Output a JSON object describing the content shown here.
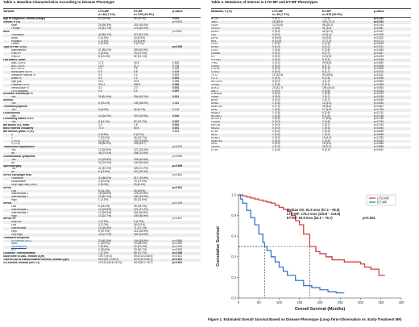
{
  "table1": {
    "title": "Table 1. Baseline Characteristics According to Disease Phenotype",
    "headers": [
      "Variable",
      "LTO-MF\nn= 48 (7.1%)",
      "ET-MF\nn= 578 (92.9%)",
      "p-value"
    ],
    "rows": [
      {
        "label": "Age at Diagnosis, median (range)",
        "ind": 0,
        "sec": true,
        "a": "63 (35-86)",
        "b": "66 (19-90)",
        "p": "0.001"
      },
      {
        "label": "Gender, n (%)",
        "ind": 0,
        "sec": true,
        "a": "",
        "b": "",
        "p": "p=0.623"
      },
      {
        "label": "Male",
        "ind": 1,
        "a": "28 (58.3%)",
        "b": "261 (60.0%)",
        "p": ""
      },
      {
        "label": "Female",
        "ind": 1,
        "a": "20 (41.7%)",
        "b": "174 (40.0%)",
        "p": ""
      },
      {
        "label": "Race",
        "ind": 0,
        "sec": true,
        "a": "",
        "b": "",
        "p": "p=0.621"
      },
      {
        "label": "Caucasian",
        "ind": 1,
        "a": "40 (83.1%)",
        "b": "371 (87.1%)",
        "p": ""
      },
      {
        "label": "Black",
        "ind": 1,
        "a": "2 (4.3%)",
        "b": "23 (5.4%)",
        "p": ""
      },
      {
        "label": "Hispanic",
        "ind": 1,
        "a": "1 (2.1%)",
        "b": "23 (5.4%)",
        "p": ""
      },
      {
        "label": "Others",
        "ind": 1,
        "a": "2 (4.3%)",
        "b": "9 (2.1%)",
        "p": ""
      },
      {
        "label": "Type of PMF, n (%)",
        "ind": 0,
        "sec": true,
        "a": "",
        "b": "",
        "p": "p=0.003"
      },
      {
        "label": "Myelofibrotic",
        "ind": 1,
        "a": "41 (85.4%)",
        "b": "265 (60.9%)",
        "p": ""
      },
      {
        "label": "Post-PV",
        "ind": 1,
        "a": "2 (4.2%)",
        "b": "78 (17.9%)",
        "p": ""
      },
      {
        "label": "Post-ET",
        "ind": 1,
        "a": "5 (10.4%)",
        "b": "92 (21.1%)",
        "p": ""
      },
      {
        "label": "Lab values, mean",
        "ind": 0,
        "sec": true,
        "a": "",
        "b": "",
        "p": ""
      },
      {
        "label": "WBC x10⁹/L",
        "ind": 1,
        "a": "17.2",
        "b": "16.5",
        "p": "0.815"
      },
      {
        "label": "ANC x10⁹/L",
        "ind": 1,
        "a": "12.0",
        "b": "11.1",
        "p": "0.734"
      },
      {
        "label": "ALC x10⁹/L",
        "ind": 1,
        "a": "1.6",
        "b": "2.6",
        "p": "0.169"
      },
      {
        "label": "Monocytes x10⁹/L",
        "ind": 1,
        "a": "0.9",
        "b": "0.8",
        "p": "0.605"
      },
      {
        "label": "Immature myeloid %",
        "ind": 1,
        "a": "3.3",
        "b": "3.1",
        "p": "0.822"
      },
      {
        "label": "Blasts %",
        "ind": 1,
        "a": "0.4",
        "b": "1.2",
        "p": "0.001"
      },
      {
        "label": "Hgb g/dL",
        "ind": 1,
        "a": "11.0",
        "b": "10.5",
        "p": "0.096"
      },
      {
        "label": "Platelets x10⁹/L",
        "ind": 1,
        "a": "374.4",
        "b": "306.3",
        "p": "0.006"
      },
      {
        "label": "Reticulocyte %",
        "ind": 1,
        "a": "3.2",
        "b": "2.0",
        "p": "0.001"
      },
      {
        "label": "LDH, adjusted",
        "ind": 1,
        "a": "2.4",
        "b": "3.4",
        "p": "0.007"
      },
      {
        "label": "Elevated reticulocyte %",
        "ind": 0,
        "sec": true,
        "a": "",
        "b": "",
        "p": ""
      },
      {
        "label": "Yes",
        "ind": 1,
        "a": "35 (81.4%)",
        "b": "254 (64.1%)",
        "p": "0.021"
      },
      {
        "label": "Anemia",
        "ind": 0,
        "sec": true,
        "a": "",
        "b": "",
        "p": ""
      },
      {
        "label": "Yes",
        "ind": 1,
        "a": "9 (23.1%)",
        "b": "139 (38.0%)",
        "p": "0.084"
      },
      {
        "label": "Thrombocytopenia",
        "ind": 0,
        "sec": true,
        "a": "",
        "b": "",
        "p": ""
      },
      {
        "label": "Yes",
        "ind": 1,
        "a": "0 (0.0%)",
        "b": "26 (6.7%)",
        "p": "0.143"
      },
      {
        "label": "Leukocytosis",
        "ind": 0,
        "sec": true,
        "a": "",
        "b": "",
        "p": ""
      },
      {
        "label": "Yes",
        "ind": 1,
        "a": "11 (26.2%)",
        "b": "207 (49.9%)",
        "p": "0.010"
      },
      {
        "label": "Circulating Blasts >=2%",
        "ind": 0,
        "sec": true,
        "a": "",
        "b": "",
        "p": ""
      },
      {
        "label": "Yes",
        "ind": 1,
        "a": "3 (11.1%)",
        "b": "82 (27.7%)",
        "p": "0.037"
      },
      {
        "label": "BM Blasts (%), mean",
        "ind": 0,
        "sec": true,
        "a": "1.3",
        "b": "1.8",
        "p": "0.001"
      },
      {
        "label": "Bone marrow cellularity",
        "ind": 0,
        "sec": true,
        "a": "71.0",
        "b": "60.8",
        "p": "0.001"
      },
      {
        "label": "BM fibrosis grade, n (%)",
        "ind": 0,
        "sec": true,
        "a": "",
        "b": "",
        "p": "0.625"
      },
      {
        "label": "0",
        "ind": 1,
        "a": "2 (5.6%)",
        "b": "9 (2.1%)",
        "p": ""
      },
      {
        "label": "1",
        "ind": 1,
        "a": "7 (19.4%)",
        "b": "46 (10.7%)",
        "p": ""
      },
      {
        "label": "2 (>=2)",
        "ind": 1,
        "a": "11 (23.0)",
        "b": "101 (23.6%)",
        "p": ""
      },
      {
        "label": "3 (>=3)",
        "ind": 1,
        "a": "28 (80.0%)",
        "b": "228 (53.7)",
        "p": ""
      },
      {
        "label": "Transfusion dependence",
        "ind": 0,
        "sec": true,
        "a": "",
        "b": "",
        "p": "p=0.223"
      },
      {
        "label": "Yes",
        "ind": 1,
        "a": "10 (20.8%)",
        "b": "127 (29.2%)",
        "p": ""
      },
      {
        "label": "No",
        "ind": 1,
        "a": "38 (79.2%)",
        "b": "308 (70.8%)",
        "p": ""
      },
      {
        "label": "Constitutional symptoms",
        "ind": 0,
        "sec": true,
        "a": "",
        "b": "",
        "p": "p=0.052"
      },
      {
        "label": "Yes",
        "ind": 1,
        "a": "14 (29.8%)",
        "b": "193 (44.9%)",
        "p": ""
      },
      {
        "label": "No",
        "ind": 1,
        "a": "33 (70.2%)",
        "b": "240 (55.6%)",
        "p": ""
      },
      {
        "label": "Splenomegaly",
        "ind": 0,
        "sec": true,
        "a": "",
        "b": "",
        "p": "p=0.005"
      },
      {
        "label": "Yes",
        "ind": 1,
        "a": "41 (87.2%)",
        "b": "325 (74.7%)",
        "p": ""
      },
      {
        "label": "No",
        "ind": 1,
        "a": "6 (12.8%)",
        "b": "110 (25.3%)",
        "p": ""
      },
      {
        "label": "GIPSS Karyotype Risk",
        "ind": 0,
        "sec": true,
        "a": "",
        "b": "",
        "p": "p=0.481"
      },
      {
        "label": "Favorable",
        "ind": 1,
        "a": "34 (85.0%)",
        "b": "317 (76.9%)",
        "p": ""
      },
      {
        "label": "Unfavorable",
        "ind": 1,
        "a": "4 (10.0%)",
        "b": "70 (17.0%)",
        "p": ""
      },
      {
        "label": "Very High Risk (VHR)",
        "ind": 1,
        "a": "2 (5.0%)",
        "b": "25 (6.1%)",
        "p": ""
      },
      {
        "label": "GIPSS",
        "ind": 0,
        "sec": true,
        "a": "",
        "b": "",
        "p": "p=0.001"
      },
      {
        "label": "Low",
        "ind": 1,
        "a": "5 (11.1%)",
        "b": "25 (6.0%)",
        "p": ""
      },
      {
        "label": "Intermediate-1",
        "ind": 1,
        "a": "16 (35.6%)",
        "b": "124 (29.6%)",
        "p": ""
      },
      {
        "label": "Intermediate-2",
        "ind": 1,
        "a": "23 (51.1%)",
        "b": "180 (43.0%)",
        "p": ""
      },
      {
        "label": "High",
        "ind": 1,
        "a": "1 (2.2%)",
        "b": "90 (21.5%)",
        "p": ""
      },
      {
        "label": "GIPSS",
        "ind": 0,
        "sec": true,
        "a": "",
        "b": "",
        "p": "p=0.125"
      },
      {
        "label": "Low",
        "ind": 1,
        "a": "8 (18.2%)",
        "b": "35 (16.2%)",
        "p": ""
      },
      {
        "label": "Intermediate-1",
        "ind": 1,
        "a": "13 (29.5%)",
        "b": "121 (27.2%)",
        "p": ""
      },
      {
        "label": "Intermediate-2",
        "ind": 1,
        "a": "13 (29.5%)",
        "b": "116 (26.9%)",
        "p": ""
      },
      {
        "label": "High",
        "ind": 1,
        "a": "10 (22.7%)",
        "b": "159 (36.9%)",
        "p": ""
      },
      {
        "label": "MIPSS70+",
        "ind": 0,
        "sec": true,
        "a": "",
        "b": "",
        "p": "p=0.407"
      },
      {
        "label": "Very low",
        "ind": 1,
        "a": "1 (2.3%)",
        "b": "5 (1.2%)",
        "p": ""
      },
      {
        "label": "Low",
        "ind": 1,
        "a": "3 (7.0%)",
        "b": "38 (9.2%)",
        "p": ""
      },
      {
        "label": "Intermediate",
        "ind": 1,
        "a": "11 (25.6%)",
        "b": "71 (17.1%)",
        "p": ""
      },
      {
        "label": "High",
        "ind": 1,
        "a": "9 (27.9%)",
        "b": "114 (28.9%)",
        "p": ""
      },
      {
        "label": "Very high",
        "ind": 1,
        "a": "16 (37.2%)",
        "b": "181 (43.6%)",
        "p": ""
      },
      {
        "label": "Treatment Response",
        "ind": 0,
        "sec": true,
        "a": "",
        "b": "",
        "p": ""
      },
      {
        "label": "Ruxolitinib/JAK2i",
        "ind": 1,
        "lnk": true,
        "a": "20 (62.5%)",
        "b": "164 (69.5%)",
        "p": "p=0.906"
      },
      {
        "label": "HMA",
        "ind": 1,
        "a": "1 (20.0%)",
        "b": "14 (28.0%)",
        "p": "p=1.000"
      },
      {
        "label": "Hydroxyurea",
        "ind": 1,
        "lnk": true,
        "a": "1 (5.6%)",
        "b": "22 (21.4%)",
        "p": "p=0.123"
      },
      {
        "label": "SCT",
        "ind": 1,
        "a": "4 (30.8%)",
        "b": "33 (30.7%)",
        "p": "p=0.520"
      },
      {
        "label": "Leukemic Transformation",
        "ind": 0,
        "sec": true,
        "a": "1 (2.1%)",
        "b": "68 (11.7%)",
        "p": "p=0.046"
      },
      {
        "label": "Study time to AML, median (IQR)",
        "ind": 0,
        "sec": true,
        "a": "175.7 (n=1)",
        "b": "39.6 (13.2-84.0)",
        "p": "p=0.321"
      },
      {
        "label": "Time at risk to transformation months, median (IQR)",
        "ind": 0,
        "sec": true,
        "a": "95.3 (62.1-153.2)",
        "b": "40.5 (10.3-80.1)",
        "p": "p<0.001"
      },
      {
        "label": "OS months, median (95% CI)",
        "ind": 0,
        "sec": true,
        "a": "175.3 (125.8-214.9)",
        "b": "63.9 (53.1-76.7)",
        "p": "p<0.001"
      }
    ]
  },
  "table2": {
    "title": "Table 2. Mutations of Interest in LTO-MF and ET-MF Phenotypes",
    "headers": [
      "Mutation, n (%)",
      "LTO-MF\nn= 48 (7.1%)",
      "ET-MF\nn= 578 (92.9%)",
      "p-value"
    ],
    "rows": [
      {
        "label": "BCOR",
        "a": "3 (6.1)",
        "b": "7 (2.6)",
        "p": "p=0.030"
      },
      {
        "label": "JAK2",
        "a": "26 (58.3)",
        "b": "315 (72.4)",
        "p": "p=0.041"
      },
      {
        "label": "CALR",
        "a": "12 (31.6)",
        "b": "58 (20.2)",
        "p": "p=0.144"
      },
      {
        "label": "SRSF2",
        "a": "2 (5.6)",
        "b": "31 (9.2)",
        "p": "p=0.587"
      },
      {
        "label": "U2AF1",
        "a": "2 (5.3)",
        "b": "42 (12.1)",
        "p": "p=0.167"
      },
      {
        "label": "CBL",
        "a": "0 (0.0)",
        "b": "14 (4.1)",
        "p": "p=0.205"
      },
      {
        "label": "EZH2",
        "a": "6 (16.6)",
        "b": "34 (9.5)",
        "p": "p=0.202"
      },
      {
        "label": "MPL",
        "a": "5 (12.5)",
        "b": "27 (7.3)",
        "p": "p=0.271"
      },
      {
        "label": "PHF6",
        "a": "1 (2.8)",
        "b": "6 (1.8)",
        "p": "p=0.508"
      },
      {
        "label": "KRAS",
        "a": "0 (0.0)",
        "b": "6 (2.2)",
        "p": "p=0.341"
      },
      {
        "label": "CUX1",
        "a": "2 (5.6)",
        "b": "9 (2.8)",
        "p": "p=0.360"
      },
      {
        "label": "KDM6A",
        "a": "0 (0.0)",
        "b": "8 (2.7)",
        "p": "p=0.367"
      },
      {
        "label": "KIT",
        "a": "0 (0.0)",
        "b": "10 (2.9)",
        "p": "p=0.423"
      },
      {
        "label": "PTPN11",
        "a": "0 (0.0)",
        "b": "8 (2.5)",
        "p": "p=0.456"
      },
      {
        "label": "TP53",
        "a": "2 (4.2)",
        "b": "29 (6.9)",
        "p": "p=0.460"
      },
      {
        "label": "GATA2",
        "a": "0 (0.0)",
        "b": "6 (1.7)",
        "p": "p=0.505"
      },
      {
        "label": "CSF3R",
        "a": "0 (0.0)",
        "b": "5 (1.5)",
        "p": "p=0.505"
      },
      {
        "label": "STAG2",
        "a": "0 (0.0)",
        "b": "6 (1.7)",
        "p": "p=0.514"
      },
      {
        "label": "TET2",
        "a": "12 (31.6)",
        "b": "92 (26.5)",
        "p": "p=0.511"
      },
      {
        "label": "FLT3",
        "a": "0 (0.0)",
        "b": "5 (1.5)",
        "p": "p=0.559"
      },
      {
        "label": "NOTCH1",
        "a": "0 (0.0)",
        "b": "4 (1.2)",
        "p": "p=0.563"
      },
      {
        "label": "SH2B3",
        "a": "1 (2.8)",
        "b": "5 (2.1)",
        "p": "p=0.568"
      },
      {
        "label": "ASXL1",
        "a": "20 (41.7)",
        "b": "194 (44.6)",
        "p": "p=0.604"
      },
      {
        "label": "ABL1",
        "a": "0 (0.0)",
        "b": "2 (0.6)",
        "p": "p=0.633"
      },
      {
        "label": "CDKN2A",
        "a": "0 (0.0)",
        "b": "2 (0.6)",
        "p": "p=0.633"
      },
      {
        "label": "GNAS",
        "a": "0 (0.0)",
        "b": "2 (0.7)",
        "p": "p=0.638"
      },
      {
        "label": "BRAF",
        "a": "0 (0.0)",
        "b": "2 (0.7)",
        "p": "p=0.639"
      },
      {
        "label": "NRAS",
        "a": "1 (2.8)",
        "b": "13 (4.3)",
        "p": "p=0.653"
      },
      {
        "label": "DNMT3A",
        "a": "3 (7.9)",
        "b": "28 (8.3)",
        "p": "p=0.667"
      },
      {
        "label": "IDH2",
        "a": "1 (2.6)",
        "b": "17 (4.9)",
        "p": "p=0.706"
      },
      {
        "label": "NRAS2",
        "a": "1 (2.8)",
        "b": "8 (2.6)",
        "p": "p=0.742"
      },
      {
        "label": "BCORL1",
        "a": "1 (2.8)",
        "b": "6 (1.9)",
        "p": "p=0.745"
      },
      {
        "label": "SETBP1",
        "a": "2 (5.6)",
        "b": "17 (5.6)",
        "p": "p=0.765"
      },
      {
        "label": "CEBPA",
        "a": "0 (0.0)",
        "b": "2 (0.6)",
        "p": "p=0.794"
      },
      {
        "label": "KMT2A",
        "a": "0 (0.0)",
        "b": "2 (0.7)",
        "p": "p=0.794"
      },
      {
        "label": "RAD21",
        "a": "0 (0.0)",
        "b": "1 (0.3)",
        "p": "p=0.840"
      },
      {
        "label": "ETV6",
        "a": "0 (0.0)",
        "b": "1 (0.3)",
        "p": "p=0.845"
      },
      {
        "label": "IDH1",
        "a": "1 (2.6)",
        "b": "7 (2.0)",
        "p": "p=0.858"
      },
      {
        "label": "RUNX1",
        "a": "2 (5.3)",
        "b": "15 (4.3)",
        "p": "p=0.782"
      },
      {
        "label": "DNMT3A",
        "a": "0 (0.0)",
        "b": "1 (0.3)",
        "p": "p=0.843"
      },
      {
        "label": "IDH2",
        "a": "2 (5.3)",
        "b": "19 (5.4)",
        "p": "p=0.856"
      },
      {
        "label": "ZRSR2",
        "a": "3 (7.9)",
        "b": "25 (7.2)",
        "p": "p=0.888"
      },
      {
        "label": "ETV6",
        "a": "1 (2.6)",
        "b": "8 (2.3)",
        "p": "p=0.941"
      }
    ]
  },
  "figure": {
    "caption": "Figure 1. Estimated Overall Survival Based on Disease Phenotype (Long-Term-Observation vs. Early-Treatment MF)",
    "stats": {
      "median_label": "Median OS: 81.5 mos (67.4 – 95.9)",
      "lto_line": "LTO-MF:    175.3 mos (125.8 – 214.9)",
      "et_line": "ET-MF:       63.9 mos (53.1 – 76.7)",
      "p_value": "p<0.001"
    }
  },
  "chart_data": {
    "type": "line",
    "xlabel": "Overall Survival (Months)",
    "ylabel": "Cumulative Survival",
    "xlim": [
      0,
      400
    ],
    "ylim": [
      0,
      1.0
    ],
    "x_ticks": [
      0,
      50,
      100,
      150,
      200,
      250,
      300,
      350,
      400
    ],
    "y_ticks": [
      0.0,
      0.2,
      0.4,
      0.6,
      0.8,
      1.0
    ],
    "grid": false,
    "legend": "top-right",
    "series": [
      {
        "name": "LTO-MF",
        "color": "#d04040",
        "x": [
          0,
          10,
          20,
          30,
          40,
          50,
          60,
          70,
          80,
          90,
          100,
          110,
          120,
          130,
          140,
          150,
          160,
          175,
          190,
          200,
          215,
          230,
          260,
          300,
          310,
          325,
          345,
          360
        ],
        "y": [
          1.0,
          0.99,
          0.98,
          0.97,
          0.96,
          0.95,
          0.94,
          0.93,
          0.92,
          0.9,
          0.88,
          0.86,
          0.84,
          0.8,
          0.75,
          0.71,
          0.62,
          0.5,
          0.45,
          0.43,
          0.4,
          0.37,
          0.35,
          0.33,
          0.3,
          0.28,
          0.22,
          0.22
        ]
      },
      {
        "name": "ET-MF",
        "color": "#3a78c8",
        "x": [
          0,
          5,
          10,
          20,
          30,
          40,
          50,
          60,
          64,
          70,
          80,
          90,
          100,
          110,
          120,
          140,
          160,
          180,
          200,
          220,
          240,
          260
        ],
        "y": [
          1.0,
          0.96,
          0.92,
          0.85,
          0.78,
          0.71,
          0.62,
          0.54,
          0.5,
          0.46,
          0.4,
          0.35,
          0.3,
          0.26,
          0.22,
          0.17,
          0.12,
          0.1,
          0.08,
          0.06,
          0.05,
          0.05
        ]
      }
    ],
    "medians": [
      {
        "series": "ET-MF",
        "x": 64,
        "y": 0.5
      },
      {
        "series": "LTO-MF",
        "x": 175,
        "y": 0.5
      }
    ]
  }
}
